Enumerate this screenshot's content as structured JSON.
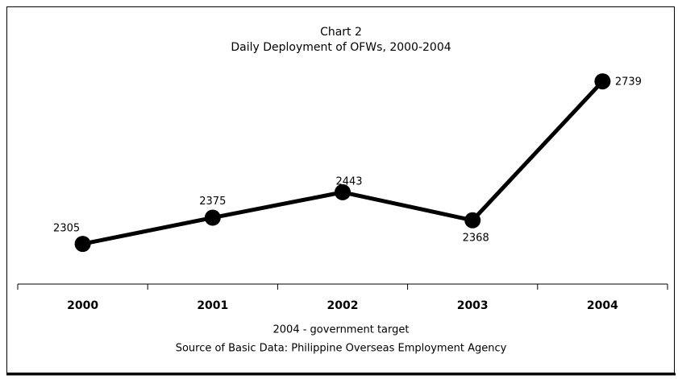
{
  "chart_data": {
    "type": "line",
    "title": "Chart 2",
    "subtitle": "Daily Deployment of OFWs, 2000-2004",
    "categories": [
      "2000",
      "2001",
      "2002",
      "2003",
      "2004"
    ],
    "series": [
      {
        "name": "Daily Deployment",
        "color": "#000000",
        "values": [
          2305,
          2375,
          2443,
          2368,
          2739
        ]
      }
    ],
    "ylim": [
      2200,
      2800
    ],
    "notes": [
      "2004 - government target",
      "Source of Basic Data: Philippine Overseas Employment Agency"
    ]
  }
}
